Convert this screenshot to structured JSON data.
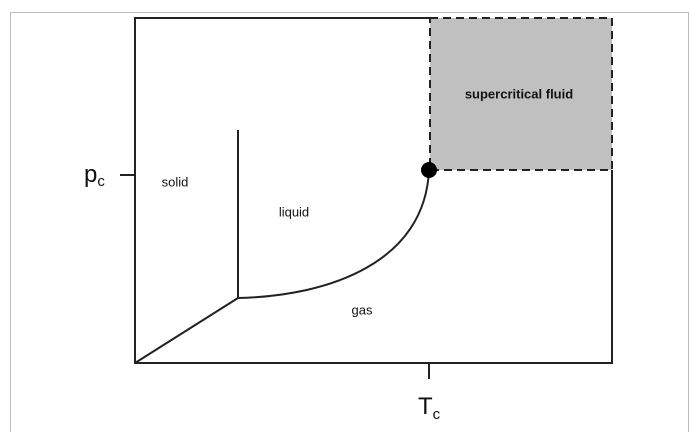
{
  "diagram": {
    "regions": {
      "solid": "solid",
      "liquid": "liquid",
      "gas": "gas",
      "supercritical": "supercritical fluid"
    },
    "axes": {
      "pressure": {
        "symbol": "p",
        "subscript": "c"
      },
      "temperature": {
        "symbol": "T",
        "subscript": "c"
      }
    }
  }
}
